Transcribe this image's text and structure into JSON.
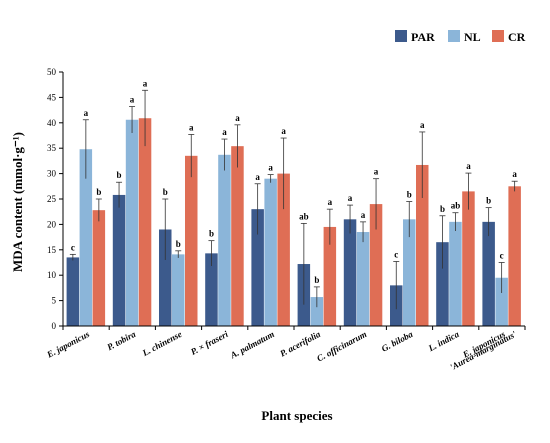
{
  "chart_data": {
    "type": "bar",
    "title": "",
    "xlabel": "Plant species",
    "ylabel": "MDA content  (mmol·g⁻¹)",
    "ylim": [
      0,
      50
    ],
    "yticks": [
      0,
      5,
      10,
      15,
      20,
      25,
      30,
      35,
      40,
      45,
      50
    ],
    "grid": false,
    "legend_position": "top-right",
    "categories": [
      [
        "E. japonicus"
      ],
      [
        "P. tobira"
      ],
      [
        "L. chinense"
      ],
      [
        "P. × fraseri"
      ],
      [
        "A. palmatum"
      ],
      [
        "P. acerifolia"
      ],
      [
        "C. officinarum"
      ],
      [
        "G. biloba"
      ],
      [
        "L. indica"
      ],
      [
        "E. japonicus",
        "'Aurea-marginatus'"
      ]
    ],
    "series": [
      {
        "name": "PAR",
        "color": "#3c5a8c",
        "values": [
          13.5,
          25.8,
          19.0,
          14.3,
          23.0,
          12.2,
          21.0,
          8.0,
          16.5,
          20.5
        ],
        "errors": [
          0.6,
          2.5,
          6.0,
          2.5,
          5.0,
          8.0,
          2.8,
          4.7,
          5.2,
          2.8
        ],
        "sig": [
          "c",
          "b",
          "b",
          "b",
          "a",
          "ab",
          "a",
          "c",
          "b",
          "b"
        ]
      },
      {
        "name": "NL",
        "color": "#8bb5d9",
        "values": [
          34.8,
          40.6,
          14.1,
          33.7,
          29.0,
          5.7,
          18.5,
          21.0,
          20.5,
          9.5
        ],
        "errors": [
          5.8,
          2.6,
          0.7,
          3.1,
          0.8,
          2.0,
          2.0,
          3.5,
          1.8,
          3.0
        ],
        "sig": [
          "a",
          "a",
          "b",
          "a",
          "a",
          "b",
          "a",
          "b",
          "ab",
          "c"
        ]
      },
      {
        "name": "CR",
        "color": "#df6e55",
        "values": [
          22.8,
          40.9,
          33.5,
          35.4,
          30.0,
          19.5,
          24.0,
          31.7,
          26.5,
          27.5
        ],
        "errors": [
          2.2,
          5.5,
          4.2,
          4.2,
          7.0,
          3.5,
          5.0,
          6.5,
          3.6,
          1.0
        ],
        "sig": [
          "b",
          "a",
          "a",
          "a",
          "a",
          "a",
          "a",
          "a",
          "a",
          "a"
        ]
      }
    ]
  }
}
